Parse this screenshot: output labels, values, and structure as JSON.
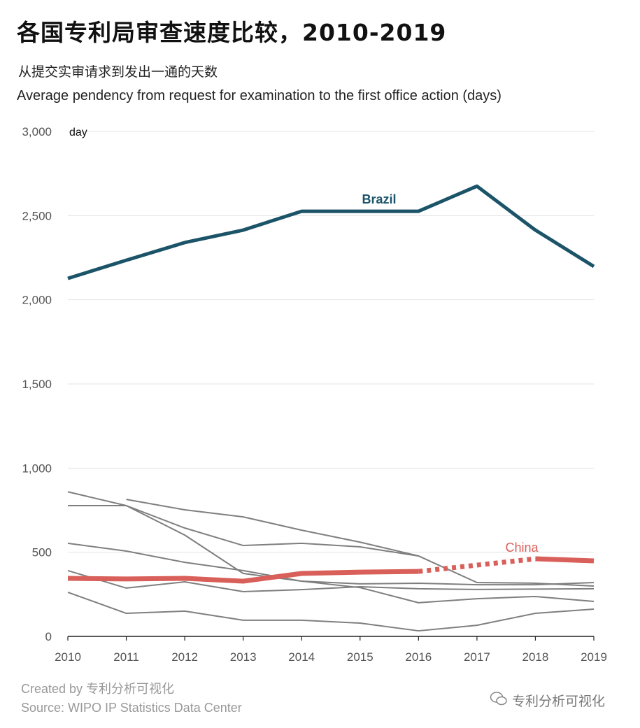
{
  "title": "各国专利局审查速度比较，2010-2019",
  "subtitle_cn": "从提交实审请求到发出一通的天数",
  "subtitle_en": "Average pendency from request for examination to the first office action (days)",
  "footer": {
    "credit": "Created by 专利分析可视化",
    "source": "Source: WIPO IP Statistics Data Center",
    "watermark": "专利分析可视化"
  },
  "chart_data": {
    "type": "line",
    "title": "各国专利局审查速度比较，2010-2019",
    "ylabel": "day",
    "x": [
      2010,
      2011,
      2012,
      2013,
      2014,
      2015,
      2016,
      2017,
      2018,
      2019
    ],
    "xtick_labels": [
      "2010",
      "2011",
      "2012",
      "2013",
      "2014",
      "2015",
      "2016",
      "2017",
      "2018",
      "2019"
    ],
    "ylim": [
      0,
      3000
    ],
    "yticks": [
      0,
      500,
      1000,
      1500,
      2000,
      2500,
      3000
    ],
    "ytick_labels": [
      "0",
      "500",
      "1,000",
      "1,500",
      "2,000",
      "2,500",
      "3,000"
    ],
    "grid": "horizontal",
    "colors": {
      "Brazil": "#1b5468",
      "China": "#d9605a",
      "other": "#7f7f7f"
    },
    "series": [
      {
        "name": "Brazil",
        "highlight": true,
        "values": [
          2127,
          2235,
          2340,
          2414,
          2526,
          2526,
          2526,
          2675,
          2414,
          2198
        ]
      },
      {
        "name": "China",
        "highlight": true,
        "values": [
          345,
          341,
          345,
          328,
          374,
          382,
          386,
          null,
          461,
          449
        ]
      },
      {
        "values": [
          859,
          777,
          644,
          540,
          553,
          532,
          478,
          320,
          316,
          299
        ]
      },
      {
        "values": [
          777,
          777,
          602,
          374,
          328,
          290,
          200,
          224,
          237,
          208
        ]
      },
      {
        "values": [
          null,
          814,
          752,
          710,
          631,
          560,
          478,
          null,
          null,
          null
        ]
      },
      {
        "values": [
          553,
          507,
          440,
          391,
          328,
          312,
          316,
          307,
          307,
          320
        ]
      },
      {
        "values": [
          391,
          287,
          324,
          266,
          278,
          295,
          283,
          279,
          281,
          283
        ]
      },
      {
        "values": [
          262,
          137,
          150,
          96,
          96,
          79,
          33,
          66,
          137,
          162
        ]
      }
    ]
  }
}
